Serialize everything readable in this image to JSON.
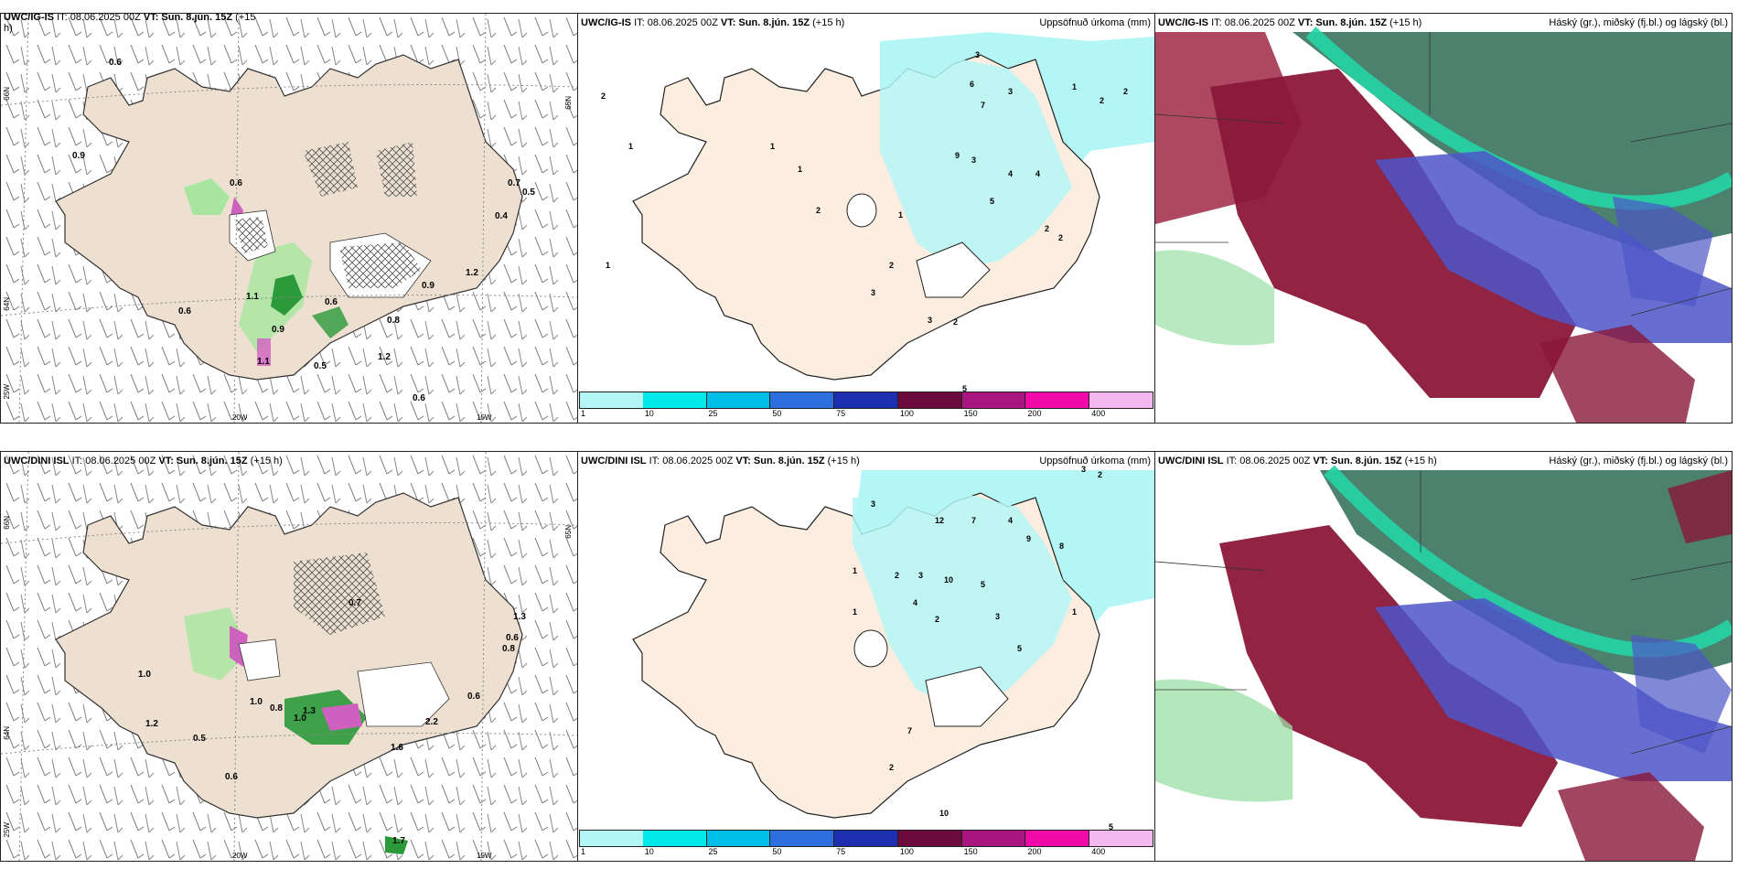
{
  "panels": {
    "top_wind": {
      "title_model": "UWC/IG-IS",
      "title_it": "IT: 08.06.2025 00Z",
      "title_vt": "VT: Sun. 8.jún. 15Z",
      "title_lead": "(+15",
      "title_lead2": "h)"
    },
    "top_precip": {
      "title_model": "UWC/IG-IS",
      "title_it": "IT: 08.06.2025 00Z",
      "title_vt": "VT: Sun. 8.jún. 15Z",
      "title_lead": "(+15 h)",
      "right_label": "Uppsöfnuð úrkoma (mm)"
    },
    "top_cloud": {
      "title_model": "UWC/IG-IS",
      "title_it": "IT: 08.06.2025 00Z",
      "title_vt": "VT: Sun. 8.jún. 15Z",
      "title_lead": "(+15 h)",
      "right_label": "Háský (gr.), miðský (fj.bl.) og lágský (bl.)"
    },
    "bot_wind": {
      "title_model": "UWC/DINI ISL",
      "title_it": "IT: 08.06.2025 00Z",
      "title_vt": "VT: Sun. 8.jún. 15Z",
      "title_lead": "(+15 h)"
    },
    "bot_precip": {
      "title_model": "UWC/DINI ISL",
      "title_it": "IT: 08.06.2025 00Z",
      "title_vt": "VT: Sun. 8.jún. 15Z",
      "title_lead": "(+15 h)",
      "right_label": "Uppsöfnuð úrkoma (mm)"
    },
    "bot_cloud": {
      "title_model": "UWC/DINI ISL",
      "title_it": "IT: 08.06.2025 00Z",
      "title_vt": "VT: Sun. 8.jún. 15Z",
      "title_lead": "(+15 h)",
      "right_label": "Háský (gr.), miðský (fj.bl.) og lágský (bl.)"
    }
  },
  "axes": {
    "lat_66": "66N",
    "lat_64": "64N",
    "lat_65": "65N",
    "lon_25": "25W",
    "lon_20": "20W",
    "lon_15": "15W"
  },
  "colorbar": {
    "ticks": [
      "1",
      "10",
      "25",
      "50",
      "75",
      "100",
      "150",
      "200",
      "400"
    ],
    "colors": [
      "#b4f6f6",
      "#00e8e8",
      "#00bfe6",
      "#2e6fe0",
      "#1c2fb0",
      "#6b0a3c",
      "#a8157e",
      "#f00aa8",
      "#f4b8f0"
    ]
  },
  "top_wind_labels": [
    "0.6",
    "0.9",
    "0.6",
    "0.7",
    "0.5",
    "0.4",
    "1.1",
    "0.6",
    "0.9",
    "0.9",
    "1.2",
    "0.6",
    "1.1",
    "0.8",
    "1.2",
    "0.5",
    "0.6"
  ],
  "bot_wind_labels": [
    "1.0",
    "1.2",
    "0.5",
    "1.0",
    "0.8",
    "0.6",
    "1.3",
    "1.0",
    "2.2",
    "1.6",
    "0.6",
    "1.3",
    "0.6",
    "0.8",
    "0.7",
    "1.7"
  ],
  "top_precip_numbers": [
    "2",
    "1",
    "1",
    "1",
    "2",
    "1",
    "3",
    "6",
    "7",
    "3",
    "1",
    "2",
    "2",
    "9",
    "3",
    "4",
    "5",
    "4",
    "2",
    "1",
    "2",
    "3",
    "3",
    "2",
    "2",
    "5"
  ],
  "bot_precip_numbers": [
    "3",
    "2",
    "3",
    "12",
    "7",
    "4",
    "9",
    "8",
    "1",
    "2",
    "3",
    "10",
    "5",
    "1",
    "4",
    "2",
    "3",
    "1",
    "5",
    "7",
    "2",
    "10",
    "5"
  ]
}
